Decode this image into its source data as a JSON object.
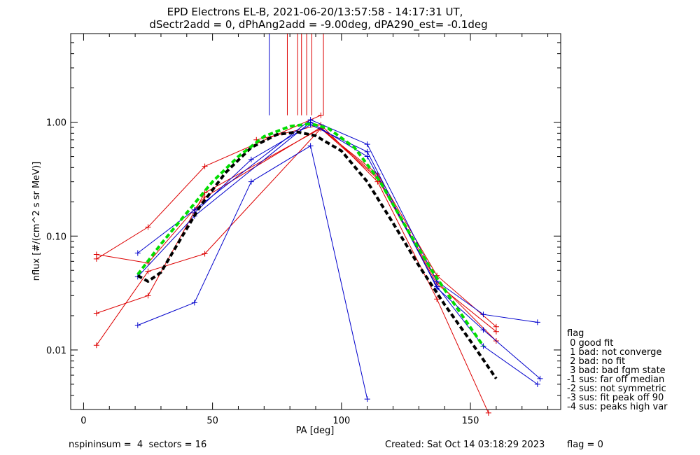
{
  "chart_data": {
    "type": "line",
    "title": "EPD Electrons EL-B, 2021-06-20/13:57:58 - 14:17:31 UT,",
    "subtitle": "dSectr2add = 0, dPhAng2add = -9.00deg, dPA290_est=  -0.1deg",
    "xlabel": "PA [deg]",
    "ylabel": "nflux [#/(cm^2 s sr MeV)]",
    "xlim": [
      -5,
      185
    ],
    "ylim": [
      0.003,
      6.0
    ],
    "yscale": "log",
    "x_ticks": [
      {
        "value": 0,
        "label": "0"
      },
      {
        "value": 50,
        "label": "50"
      },
      {
        "value": 100,
        "label": "100"
      },
      {
        "value": 150,
        "label": "150"
      }
    ],
    "y_ticks": [
      {
        "value": 0.01,
        "label": "0.01"
      },
      {
        "value": 0.1,
        "label": "0.10"
      },
      {
        "value": 1.0,
        "label": "1.00"
      }
    ],
    "series": [
      {
        "color": "#dd0000",
        "points": [
          [
            5,
            0.069
          ],
          [
            25,
            0.058
          ]
        ]
      },
      {
        "color": "#dd0000",
        "points": [
          [
            5,
            0.063
          ],
          [
            25,
            0.12
          ],
          [
            47,
            0.41
          ],
          [
            92,
            1.15
          ]
        ]
      },
      {
        "color": "#dd0000",
        "points": [
          [
            5,
            0.021
          ],
          [
            25,
            0.03
          ],
          [
            47,
            0.24
          ],
          [
            92,
            0.88
          ],
          [
            114,
            0.35
          ],
          [
            137,
            0.045
          ],
          [
            160,
            0.016
          ]
        ]
      },
      {
        "color": "#dd0000",
        "points": [
          [
            5,
            0.011
          ],
          [
            25,
            0.049
          ],
          [
            47,
            0.07
          ],
          [
            92,
            0.88
          ],
          [
            114,
            0.32
          ],
          [
            137,
            0.038
          ],
          [
            160,
            0.0145
          ]
        ]
      },
      {
        "color": "#dd0000",
        "points": [
          [
            25,
            0.058
          ],
          [
            47,
            0.22
          ],
          [
            92,
            0.9
          ],
          [
            114,
            0.33
          ],
          [
            137,
            0.04
          ],
          [
            160,
            0.012
          ]
        ]
      },
      {
        "color": "#dd0000",
        "points": [
          [
            67,
            0.7
          ],
          [
            92,
            0.95
          ],
          [
            114,
            0.3
          ],
          [
            137,
            0.028
          ],
          [
            157,
            0.0028
          ]
        ]
      },
      {
        "color": "#0000cc",
        "points": [
          [
            21,
            0.071
          ],
          [
            43,
            0.17
          ],
          [
            88,
            1.05
          ],
          [
            110,
            0.64
          ],
          [
            137,
            0.04
          ],
          [
            155,
            0.0205
          ],
          [
            176,
            0.0175
          ]
        ]
      },
      {
        "color": "#0000cc",
        "points": [
          [
            21,
            0.044
          ],
          [
            43,
            0.15
          ],
          [
            88,
            1.0
          ],
          [
            110,
            0.5
          ],
          [
            137,
            0.036
          ],
          [
            155,
            0.0108
          ],
          [
            176,
            0.005
          ]
        ]
      },
      {
        "color": "#0000cc",
        "points": [
          [
            21,
            0.0165
          ],
          [
            43,
            0.026
          ],
          [
            65,
            0.3
          ],
          [
            88,
            0.62
          ],
          [
            110,
            0.0037
          ]
        ]
      },
      {
        "color": "#0000cc",
        "points": [
          [
            43,
            0.16
          ],
          [
            65,
            0.47
          ],
          [
            88,
            0.95
          ],
          [
            110,
            0.55
          ],
          [
            137,
            0.035
          ],
          [
            155,
            0.015
          ],
          [
            177,
            0.0056
          ]
        ]
      }
    ],
    "fit_curves": [
      {
        "color": "#000000",
        "style": "dashed",
        "points": [
          [
            21,
            0.045
          ],
          [
            25,
            0.04
          ],
          [
            30,
            0.048
          ],
          [
            35,
            0.075
          ],
          [
            45,
            0.18
          ],
          [
            55,
            0.36
          ],
          [
            65,
            0.6
          ],
          [
            75,
            0.78
          ],
          [
            83,
            0.82
          ],
          [
            90,
            0.76
          ],
          [
            100,
            0.56
          ],
          [
            110,
            0.3
          ],
          [
            120,
            0.13
          ],
          [
            130,
            0.055
          ],
          [
            140,
            0.025
          ],
          [
            150,
            0.012
          ],
          [
            160,
            0.0056
          ]
        ]
      },
      {
        "color": "#00dd00",
        "style": "dashed",
        "points": [
          [
            21,
            0.046
          ],
          [
            30,
            0.085
          ],
          [
            40,
            0.16
          ],
          [
            50,
            0.3
          ],
          [
            60,
            0.5
          ],
          [
            70,
            0.75
          ],
          [
            80,
            0.92
          ],
          [
            88,
            0.97
          ],
          [
            95,
            0.88
          ],
          [
            105,
            0.6
          ],
          [
            115,
            0.3
          ],
          [
            125,
            0.12
          ],
          [
            135,
            0.05
          ],
          [
            145,
            0.023
          ],
          [
            155,
            0.0108
          ]
        ]
      }
    ],
    "vertical_markers": [
      {
        "color": "#0000cc",
        "x": 72,
        "y_bottom": 1.15
      },
      {
        "color": "#dd0000",
        "x": 79,
        "y_bottom": 1.15
      },
      {
        "color": "#dd0000",
        "x": 83,
        "y_bottom": 1.15
      },
      {
        "color": "#dd0000",
        "x": 84.5,
        "y_bottom": 1.15
      },
      {
        "color": "#dd0000",
        "x": 86.5,
        "y_bottom": 1.15
      },
      {
        "color": "#dd0000",
        "x": 88.5,
        "y_bottom": 1.15
      },
      {
        "color": "#dd0000",
        "x": 93,
        "y_bottom": 1.15
      }
    ],
    "legend": {
      "title": "flag",
      "items": [
        " 0 good fit",
        " 1 bad: not converge",
        " 2 bad: no fit",
        " 3 bad: bad fgm state",
        "-1 sus: far off median",
        "-2 sus: not symmetric",
        "-3 sus: fit peak off 90",
        "-4 sus: peaks high var"
      ]
    }
  },
  "footer": {
    "left": "nspininsum =  4  sectors = 16",
    "created": "Created: Sat Oct 14 03:18:29 2023",
    "flag": "flag = 0"
  }
}
